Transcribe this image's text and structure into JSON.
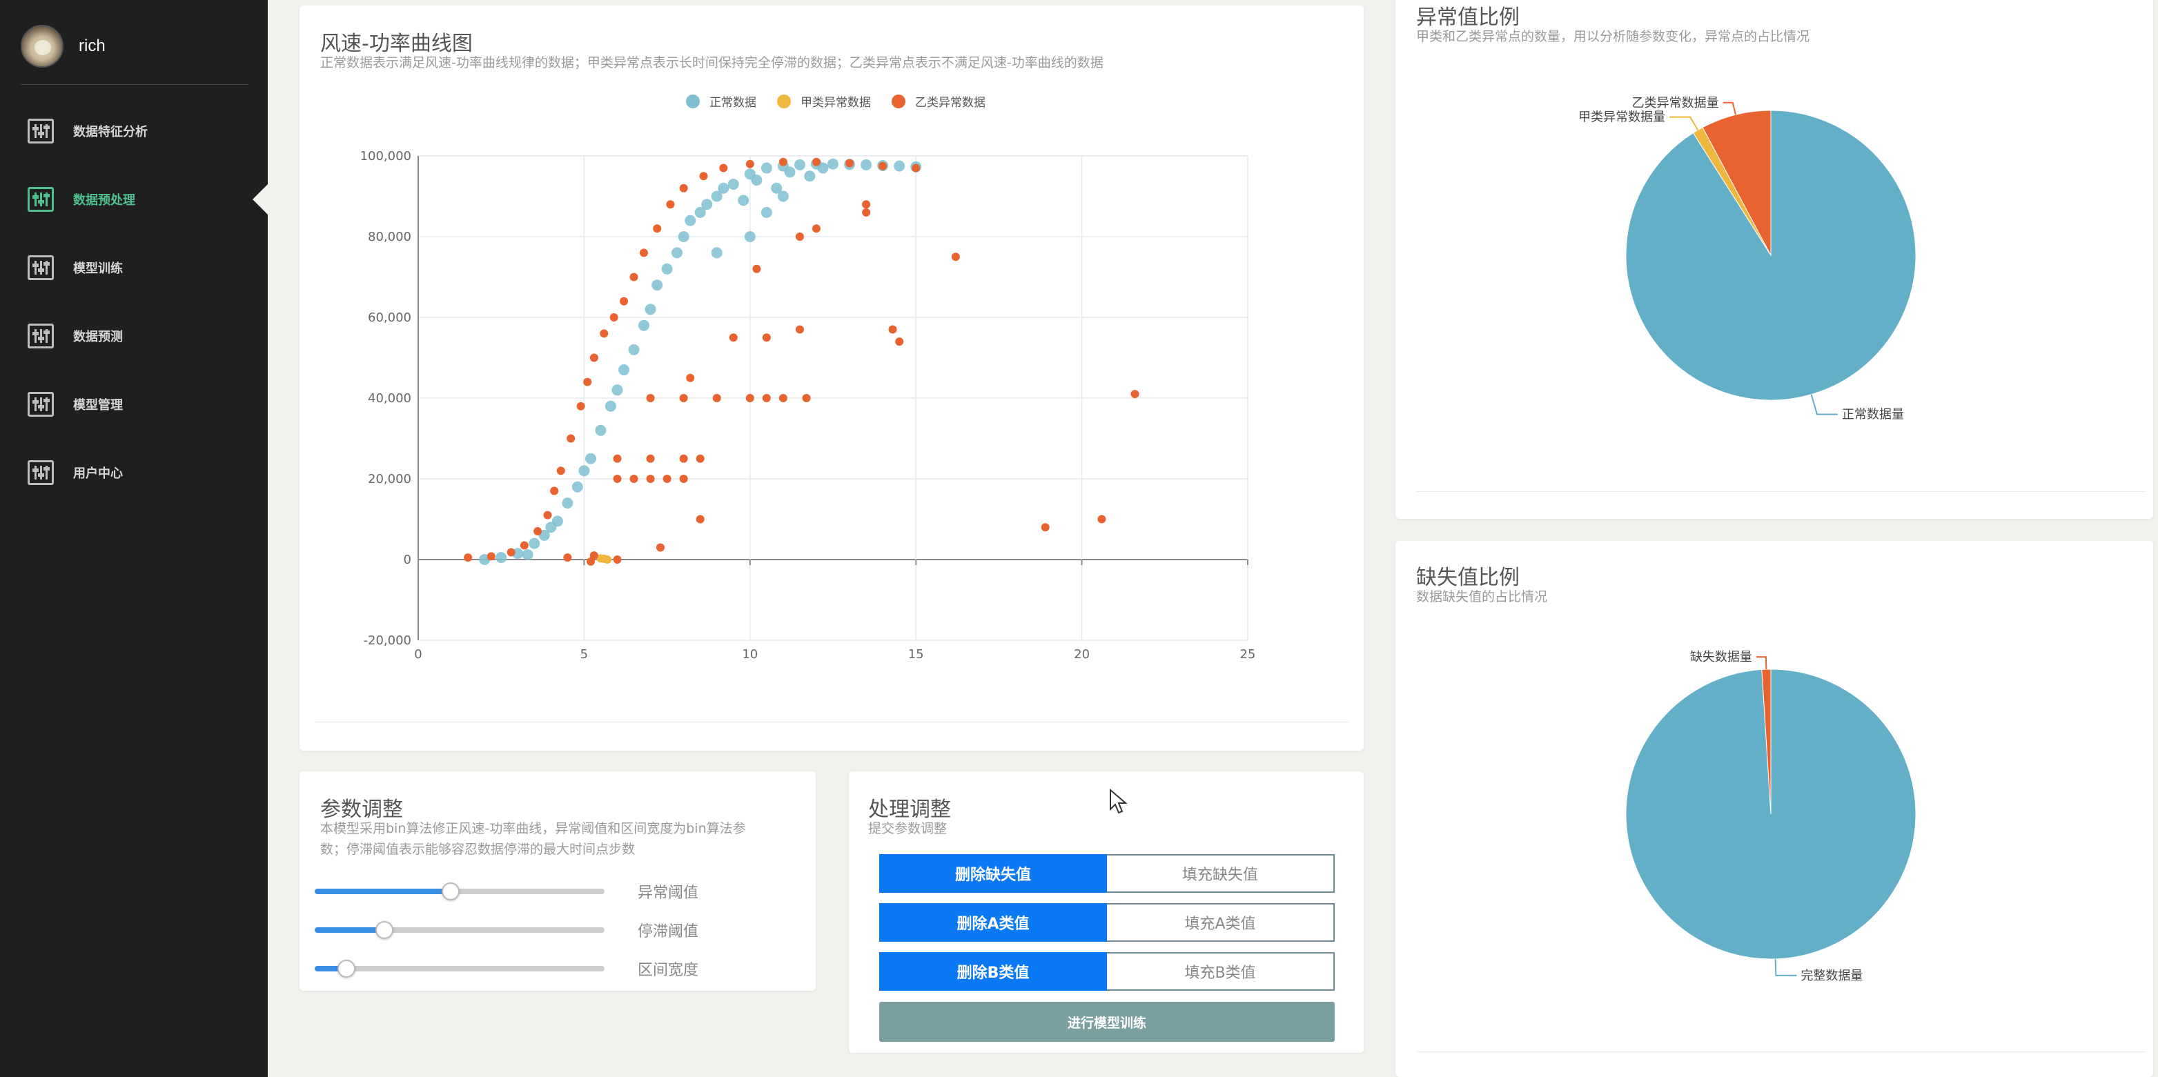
{
  "user": {
    "name": "rich"
  },
  "nav": {
    "items": [
      {
        "label": "数据特征分析",
        "icon": "sliders-icon",
        "active": false
      },
      {
        "label": "数据预处理",
        "icon": "sliders-icon",
        "active": true
      },
      {
        "label": "模型训练",
        "icon": "sliders-icon",
        "active": false
      },
      {
        "label": "数据预测",
        "icon": "sliders-icon",
        "active": false
      },
      {
        "label": "模型管理",
        "icon": "sliders-icon",
        "active": false
      },
      {
        "label": "用户中心",
        "icon": "sliders-icon",
        "active": false
      }
    ]
  },
  "scatter_card": {
    "title": "风速-功率曲线图",
    "subtitle": "正常数据表示满足风速-功率曲线规律的数据；甲类异常点表示长时间保持完全停滞的数据；乙类异常点表示不满足风速-功率曲线的数据"
  },
  "params_card": {
    "title": "参数调整",
    "subtitle_line1": "本模型采用bin算法修正风速-功率曲线，异常阈值和区间宽度为bin算法参",
    "subtitle_line2": "数；停滞阈值表示能够容忍数据停滞的最大时间点步数",
    "sliders": [
      {
        "label": "异常阈值",
        "value": 0.47
      },
      {
        "label": "停滞阈值",
        "value": 0.24
      },
      {
        "label": "区间宽度",
        "value": 0.11
      }
    ]
  },
  "process_card": {
    "title": "处理调整",
    "subtitle": "提交参数调整",
    "rows": [
      {
        "primary": "删除缺失值",
        "secondary": "填充缺失值"
      },
      {
        "primary": "删除A类值",
        "secondary": "填充A类值"
      },
      {
        "primary": "删除B类值",
        "secondary": "填充B类值"
      }
    ],
    "train_button": "进行模型训练"
  },
  "anomaly_card": {
    "title": "异常值比例",
    "subtitle": "甲类和乙类异常点的数量，用以分析随参数变化，异常点的占比情况"
  },
  "missing_card": {
    "title": "缺失值比例",
    "subtitle": "数据缺失值的占比情况"
  },
  "colors": {
    "normal": "#62afc7",
    "type_a": "#f0b73e",
    "type_b": "#e8632f",
    "accent": "#4fc08d",
    "primary_button": "#0c79f4"
  },
  "chart_data": [
    {
      "type": "scatter",
      "title": "风速-功率曲线图",
      "xlim": [
        0,
        25
      ],
      "ylim": [
        -20000,
        100000
      ],
      "x_ticks": [
        "0",
        "5",
        "10",
        "15",
        "20",
        "25"
      ],
      "y_ticks": [
        "-20,000",
        "0",
        "20,000",
        "40,000",
        "60,000",
        "80,000",
        "100,000"
      ],
      "grid": true,
      "legend_placement": "top-center",
      "series": [
        {
          "name": "正常数据",
          "color": "#7fbfd1",
          "points": [
            [
              2,
              0
            ],
            [
              2.5,
              500
            ],
            [
              3,
              1500
            ],
            [
              3.5,
              4000
            ],
            [
              4,
              8000
            ],
            [
              4.5,
              14000
            ],
            [
              5,
              22000
            ],
            [
              5.5,
              32000
            ],
            [
              6,
              42000
            ],
            [
              6.5,
              52000
            ],
            [
              7,
              62000
            ],
            [
              7.5,
              72000
            ],
            [
              8,
              80000
            ],
            [
              8.5,
              86000
            ],
            [
              9,
              90000
            ],
            [
              9.5,
              93000
            ],
            [
              10,
              95500
            ],
            [
              10.5,
              97000
            ],
            [
              11,
              97500
            ],
            [
              11.5,
              97800
            ],
            [
              12,
              98000
            ],
            [
              12.5,
              98000
            ],
            [
              13,
              97900
            ],
            [
              13.5,
              97800
            ],
            [
              14,
              97600
            ],
            [
              14.5,
              97500
            ],
            [
              15,
              97300
            ],
            [
              3.3,
              1200
            ],
            [
              4.2,
              9500
            ],
            [
              5.2,
              25000
            ],
            [
              6.2,
              47000
            ],
            [
              7.2,
              68000
            ],
            [
              8.2,
              84000
            ],
            [
              9.2,
              92000
            ],
            [
              10.2,
              94000
            ],
            [
              11.2,
              96000
            ],
            [
              12.2,
              97000
            ],
            [
              8.7,
              88000
            ],
            [
              9.8,
              89000
            ],
            [
              10.8,
              92000
            ],
            [
              11.8,
              95000
            ],
            [
              6.8,
              58000
            ],
            [
              7.8,
              76000
            ],
            [
              5.8,
              38000
            ],
            [
              4.8,
              18000
            ],
            [
              3.8,
              6000
            ],
            [
              10,
              80000
            ],
            [
              10.5,
              86000
            ],
            [
              9,
              76000
            ],
            [
              11,
              90000
            ]
          ]
        },
        {
          "name": "甲类异常数据",
          "color": "#f0b73e",
          "points": [
            [
              5.5,
              300
            ],
            [
              5.6,
              200
            ],
            [
              5.7,
              0
            ]
          ]
        },
        {
          "name": "乙类异常数据",
          "color": "#e8632f",
          "points": [
            [
              1.5,
              500
            ],
            [
              2.2,
              800
            ],
            [
              2.8,
              1800
            ],
            [
              3.2,
              3500
            ],
            [
              3.6,
              7000
            ],
            [
              3.9,
              11000
            ],
            [
              4.1,
              17000
            ],
            [
              4.3,
              22000
            ],
            [
              4.6,
              30000
            ],
            [
              4.9,
              38000
            ],
            [
              5.1,
              44000
            ],
            [
              5.3,
              50000
            ],
            [
              5.6,
              56000
            ],
            [
              5.9,
              60000
            ],
            [
              6.2,
              64000
            ],
            [
              6.5,
              70000
            ],
            [
              6.8,
              76000
            ],
            [
              7.2,
              82000
            ],
            [
              7.6,
              88000
            ],
            [
              8,
              92000
            ],
            [
              8.6,
              95000
            ],
            [
              9.2,
              97000
            ],
            [
              10,
              98000
            ],
            [
              11,
              98500
            ],
            [
              12,
              98500
            ],
            [
              13,
              98200
            ],
            [
              14,
              97500
            ],
            [
              15,
              97000
            ],
            [
              6,
              20000
            ],
            [
              6.5,
              20000
            ],
            [
              7,
              20000
            ],
            [
              7.5,
              20000
            ],
            [
              8,
              20000
            ],
            [
              6,
              25000
            ],
            [
              7,
              25000
            ],
            [
              8,
              25000
            ],
            [
              8.5,
              25000
            ],
            [
              7,
              40000
            ],
            [
              8,
              40000
            ],
            [
              9,
              40000
            ],
            [
              10,
              40000
            ],
            [
              10.5,
              40000
            ],
            [
              11,
              40000
            ],
            [
              11.7,
              40000
            ],
            [
              9.5,
              55000
            ],
            [
              10.5,
              55000
            ],
            [
              11.5,
              57000
            ],
            [
              14.3,
              57000
            ],
            [
              14.5,
              54000
            ],
            [
              13.5,
              88000
            ],
            [
              13.5,
              86000
            ],
            [
              11.5,
              80000
            ],
            [
              12,
              82000
            ],
            [
              10.2,
              72000
            ],
            [
              16.2,
              75000
            ],
            [
              21.6,
              41000
            ],
            [
              20.6,
              10000
            ],
            [
              18.9,
              8000
            ],
            [
              8.5,
              10000
            ],
            [
              7.3,
              3000
            ],
            [
              5.2,
              -500
            ],
            [
              5.3,
              1000
            ],
            [
              4.5,
              500
            ],
            [
              6,
              0
            ],
            [
              8.2,
              45000
            ]
          ]
        }
      ]
    },
    {
      "type": "pie",
      "title": "异常值比例",
      "series": [
        {
          "name": "正常数据量",
          "value": 91.0,
          "color": "#62afc7"
        },
        {
          "name": "甲类异常数据量",
          "value": 1.2,
          "color": "#f0b73e"
        },
        {
          "name": "乙类异常数据量",
          "value": 7.8,
          "color": "#e8632f"
        }
      ]
    },
    {
      "type": "pie",
      "title": "缺失值比例",
      "series": [
        {
          "name": "完整数据量",
          "value": 99.0,
          "color": "#62afc7"
        },
        {
          "name": "缺失数据量",
          "value": 1.0,
          "color": "#e8632f"
        }
      ]
    }
  ]
}
